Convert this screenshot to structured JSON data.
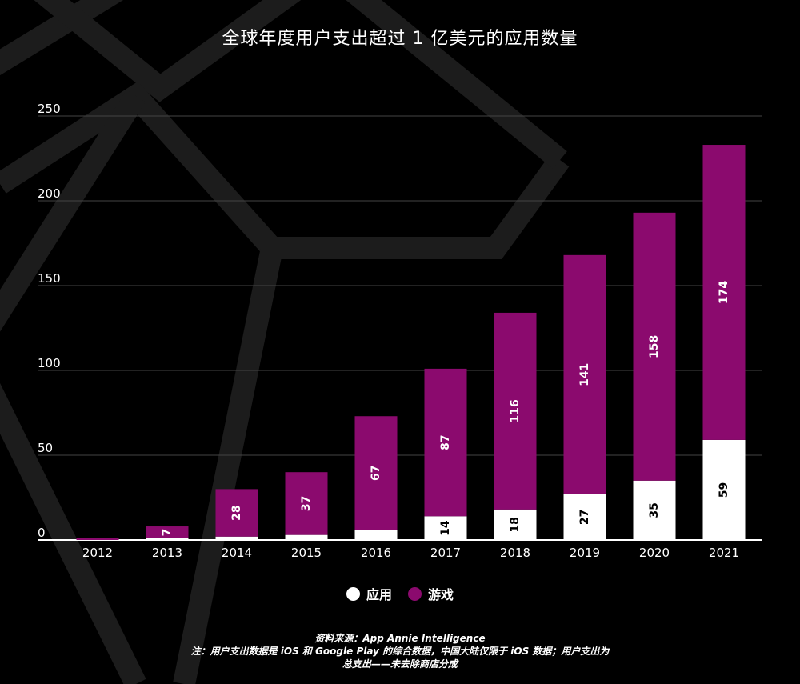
{
  "title": "全球年度用户支出超过 1 亿美元的应用数量",
  "legend": {
    "apps_label": "应用",
    "games_label": "游戏"
  },
  "footnote": {
    "line1": "资料来源：App Annie Intelligence",
    "line2": "注：用户支出数据是 iOS 和 Google Play 的综合数据，中国大陆仅限于 iOS 数据；用户支出为",
    "line3": "总支出——未去除商店分成"
  },
  "colors": {
    "apps": "#ffffff",
    "games": "#8b0a6e",
    "background": "#000000",
    "grid": "#444444"
  },
  "chart_data": {
    "type": "bar",
    "stacked": true,
    "categories": [
      "2012",
      "2013",
      "2014",
      "2015",
      "2016",
      "2017",
      "2018",
      "2019",
      "2020",
      "2021"
    ],
    "series": [
      {
        "name": "应用",
        "values": [
          0,
          1,
          2,
          3,
          6,
          14,
          18,
          27,
          35,
          59
        ]
      },
      {
        "name": "游戏",
        "values": [
          1,
          7,
          28,
          37,
          67,
          87,
          116,
          141,
          158,
          174
        ]
      }
    ],
    "value_labels": {
      "apps": [
        "",
        "",
        "",
        "",
        "",
        "14",
        "18",
        "27",
        "35",
        "59"
      ],
      "games": [
        "",
        "7",
        "28",
        "37",
        "67",
        "87",
        "116",
        "141",
        "158",
        "174"
      ]
    },
    "y_ticks": [
      "0",
      "50",
      "100",
      "150",
      "200",
      "250"
    ],
    "ylim": [
      0,
      250
    ],
    "grid": true,
    "legend_position": "bottom-center"
  }
}
